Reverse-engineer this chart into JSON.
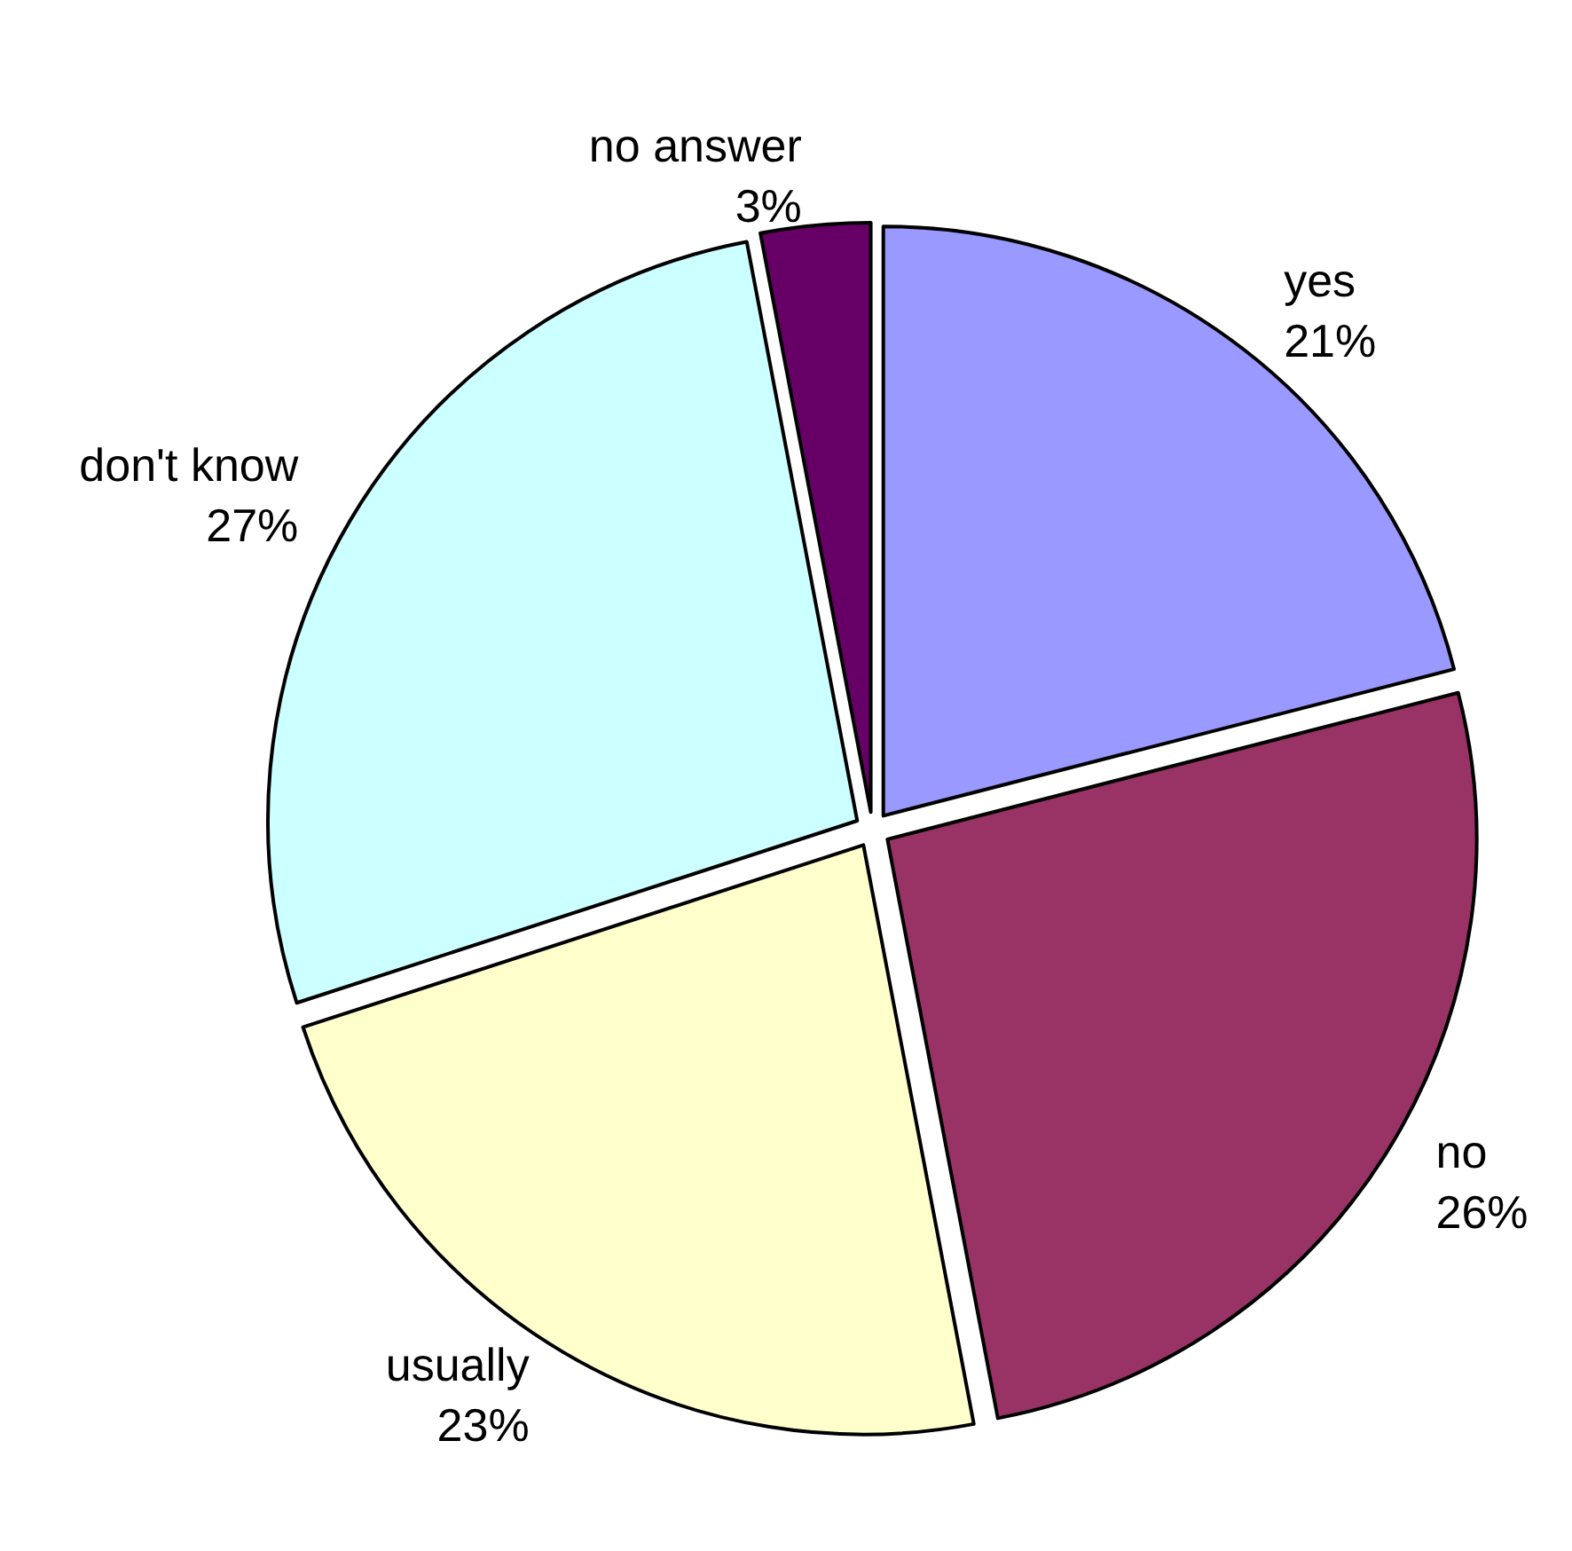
{
  "chart_data": {
    "type": "pie",
    "categories": [
      "yes",
      "no",
      "usually",
      "don't know",
      "no answer"
    ],
    "values": [
      21,
      26,
      23,
      27,
      3
    ],
    "value_labels": [
      "21%",
      "26%",
      "23%",
      "27%",
      "3%"
    ],
    "colors": [
      "#9999ff",
      "#993366",
      "#ffffcc",
      "#ccffff",
      "#660066"
    ]
  }
}
